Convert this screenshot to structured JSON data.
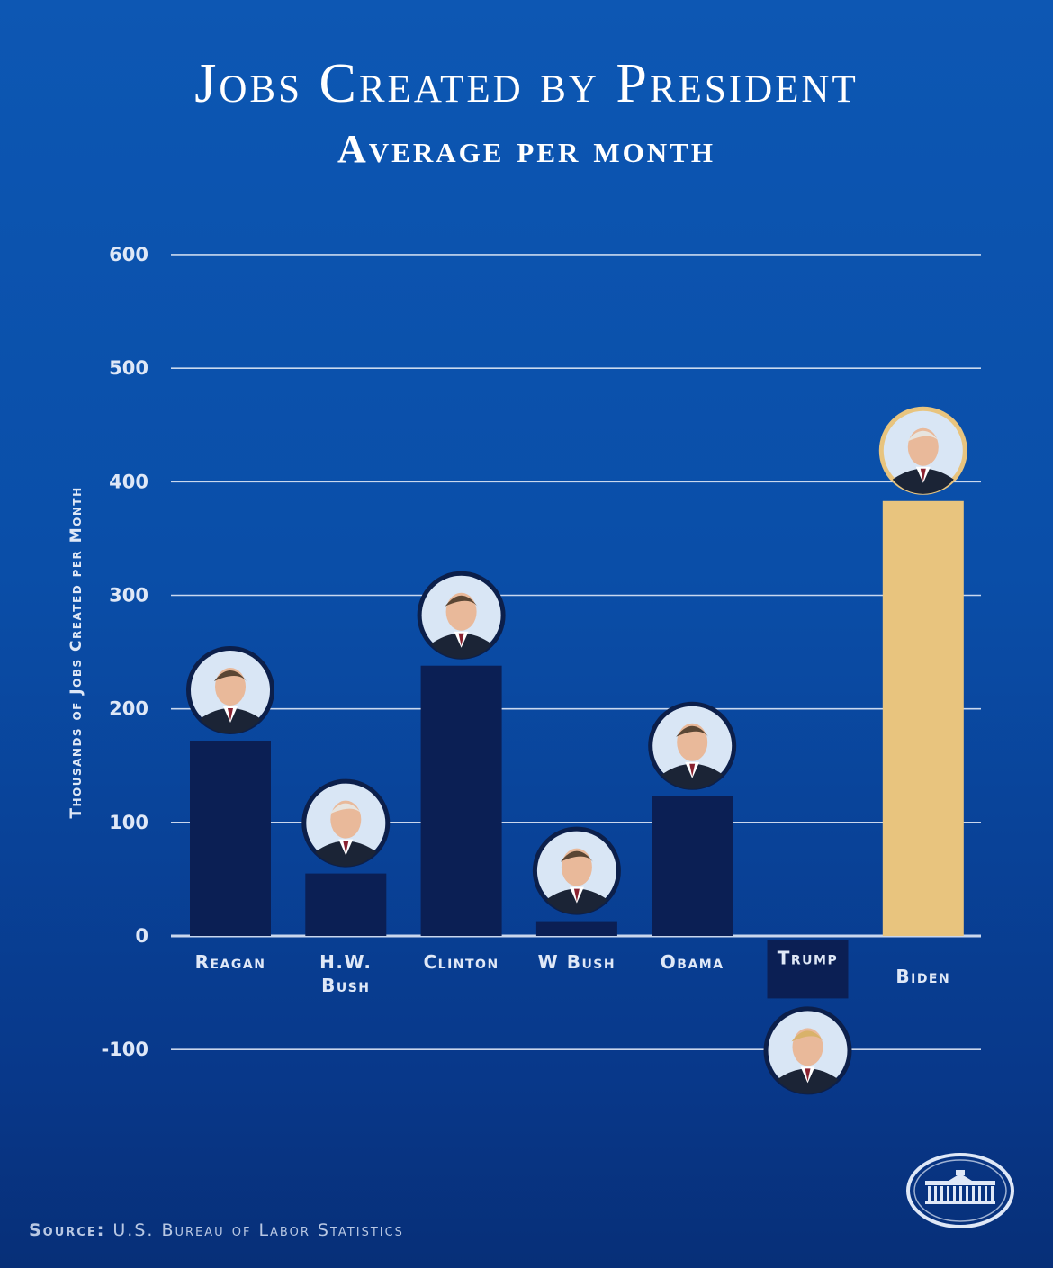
{
  "title": "Jobs Created by President",
  "subtitle": "Average per month",
  "source": {
    "label": "Source:",
    "text": "U.S. Bureau of Labor Statistics"
  },
  "colors": {
    "bar_default": "#0b1f54",
    "bar_highlight": "#e8c47e",
    "gridline": "#dfe8f7",
    "avatar_ring": "#0c1f4a",
    "avatar_ring_highlight": "#e8c47e"
  },
  "chart_data": {
    "type": "bar",
    "title": "Jobs Created by President",
    "subtitle": "Average per month",
    "ylabel": "Thousands of Jobs Created per Month",
    "xlabel": "",
    "ylim": [
      -100,
      600
    ],
    "yticks": [
      600,
      500,
      400,
      300,
      200,
      100,
      0,
      -100
    ],
    "grid": true,
    "legend": "none",
    "categories": [
      "Reagan",
      "H.W. Bush",
      "Clinton",
      "W Bush",
      "Obama",
      "Trump",
      "Biden"
    ],
    "category_lines": [
      [
        "Reagan"
      ],
      [
        "H.W.",
        "Bush"
      ],
      [
        "Clinton"
      ],
      [
        "W Bush"
      ],
      [
        "Obama"
      ],
      [
        "Trump"
      ],
      [
        "Biden"
      ]
    ],
    "values": [
      172,
      55,
      238,
      13,
      123,
      -55,
      383
    ],
    "highlight": "Biden",
    "avatar_icons": [
      "reagan-portrait-icon",
      "hw-bush-portrait-icon",
      "clinton-portrait-icon",
      "w-bush-portrait-icon",
      "obama-portrait-icon",
      "trump-portrait-icon",
      "biden-portrait-icon"
    ]
  },
  "logo_icon": "white-house-icon"
}
